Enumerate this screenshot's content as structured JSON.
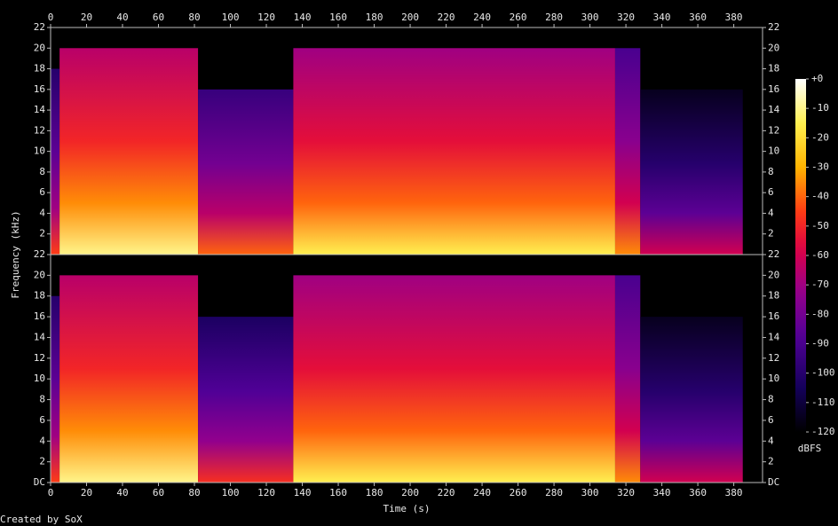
{
  "chart_data": {
    "type": "spectrogram",
    "x_label": "Time (s)",
    "y_label": "Frequency (kHz)",
    "footer": "Created by SoX",
    "xlim": [
      0,
      396
    ],
    "xticks": [
      0,
      20,
      40,
      60,
      80,
      100,
      120,
      140,
      160,
      180,
      200,
      220,
      240,
      260,
      280,
      300,
      320,
      340,
      360,
      380
    ],
    "channels": [
      {
        "ylim": [
          0,
          22
        ],
        "yticks": [
          2,
          4,
          6,
          8,
          10,
          12,
          14,
          16,
          18,
          20,
          22
        ],
        "segments": [
          {
            "start": 0,
            "end": 5,
            "cutoff": 18,
            "level": -85
          },
          {
            "start": 5,
            "end": 82,
            "cutoff": 20,
            "level": -50
          },
          {
            "start": 82,
            "end": 135,
            "cutoff": 16,
            "level": -80
          },
          {
            "start": 135,
            "end": 314,
            "cutoff": 20,
            "level": -55
          },
          {
            "start": 314,
            "end": 328,
            "cutoff": 20,
            "level": -75
          },
          {
            "start": 328,
            "end": 385,
            "cutoff": 16,
            "level": -100
          }
        ]
      },
      {
        "ylim": [
          0,
          22
        ],
        "yticks": [
          {
            "value": 0,
            "label": "DC"
          },
          2,
          4,
          6,
          8,
          10,
          12,
          14,
          16,
          18,
          20,
          22
        ],
        "segments": [
          {
            "start": 0,
            "end": 5,
            "cutoff": 18,
            "level": -85
          },
          {
            "start": 5,
            "end": 82,
            "cutoff": 20,
            "level": -50
          },
          {
            "start": 82,
            "end": 135,
            "cutoff": 16,
            "level": -88
          },
          {
            "start": 135,
            "end": 314,
            "cutoff": 20,
            "level": -55
          },
          {
            "start": 314,
            "end": 328,
            "cutoff": 20,
            "level": -75
          },
          {
            "start": 328,
            "end": 385,
            "cutoff": 16,
            "level": -100
          }
        ]
      }
    ],
    "colorbar": {
      "label": "dBFS",
      "lim": [
        -120,
        0
      ],
      "ticks": [
        {
          "value": 0,
          "label": "+0"
        },
        -10,
        -20,
        -30,
        -40,
        -50,
        -60,
        -70,
        -80,
        -90,
        -100,
        -110,
        -120
      ]
    }
  }
}
